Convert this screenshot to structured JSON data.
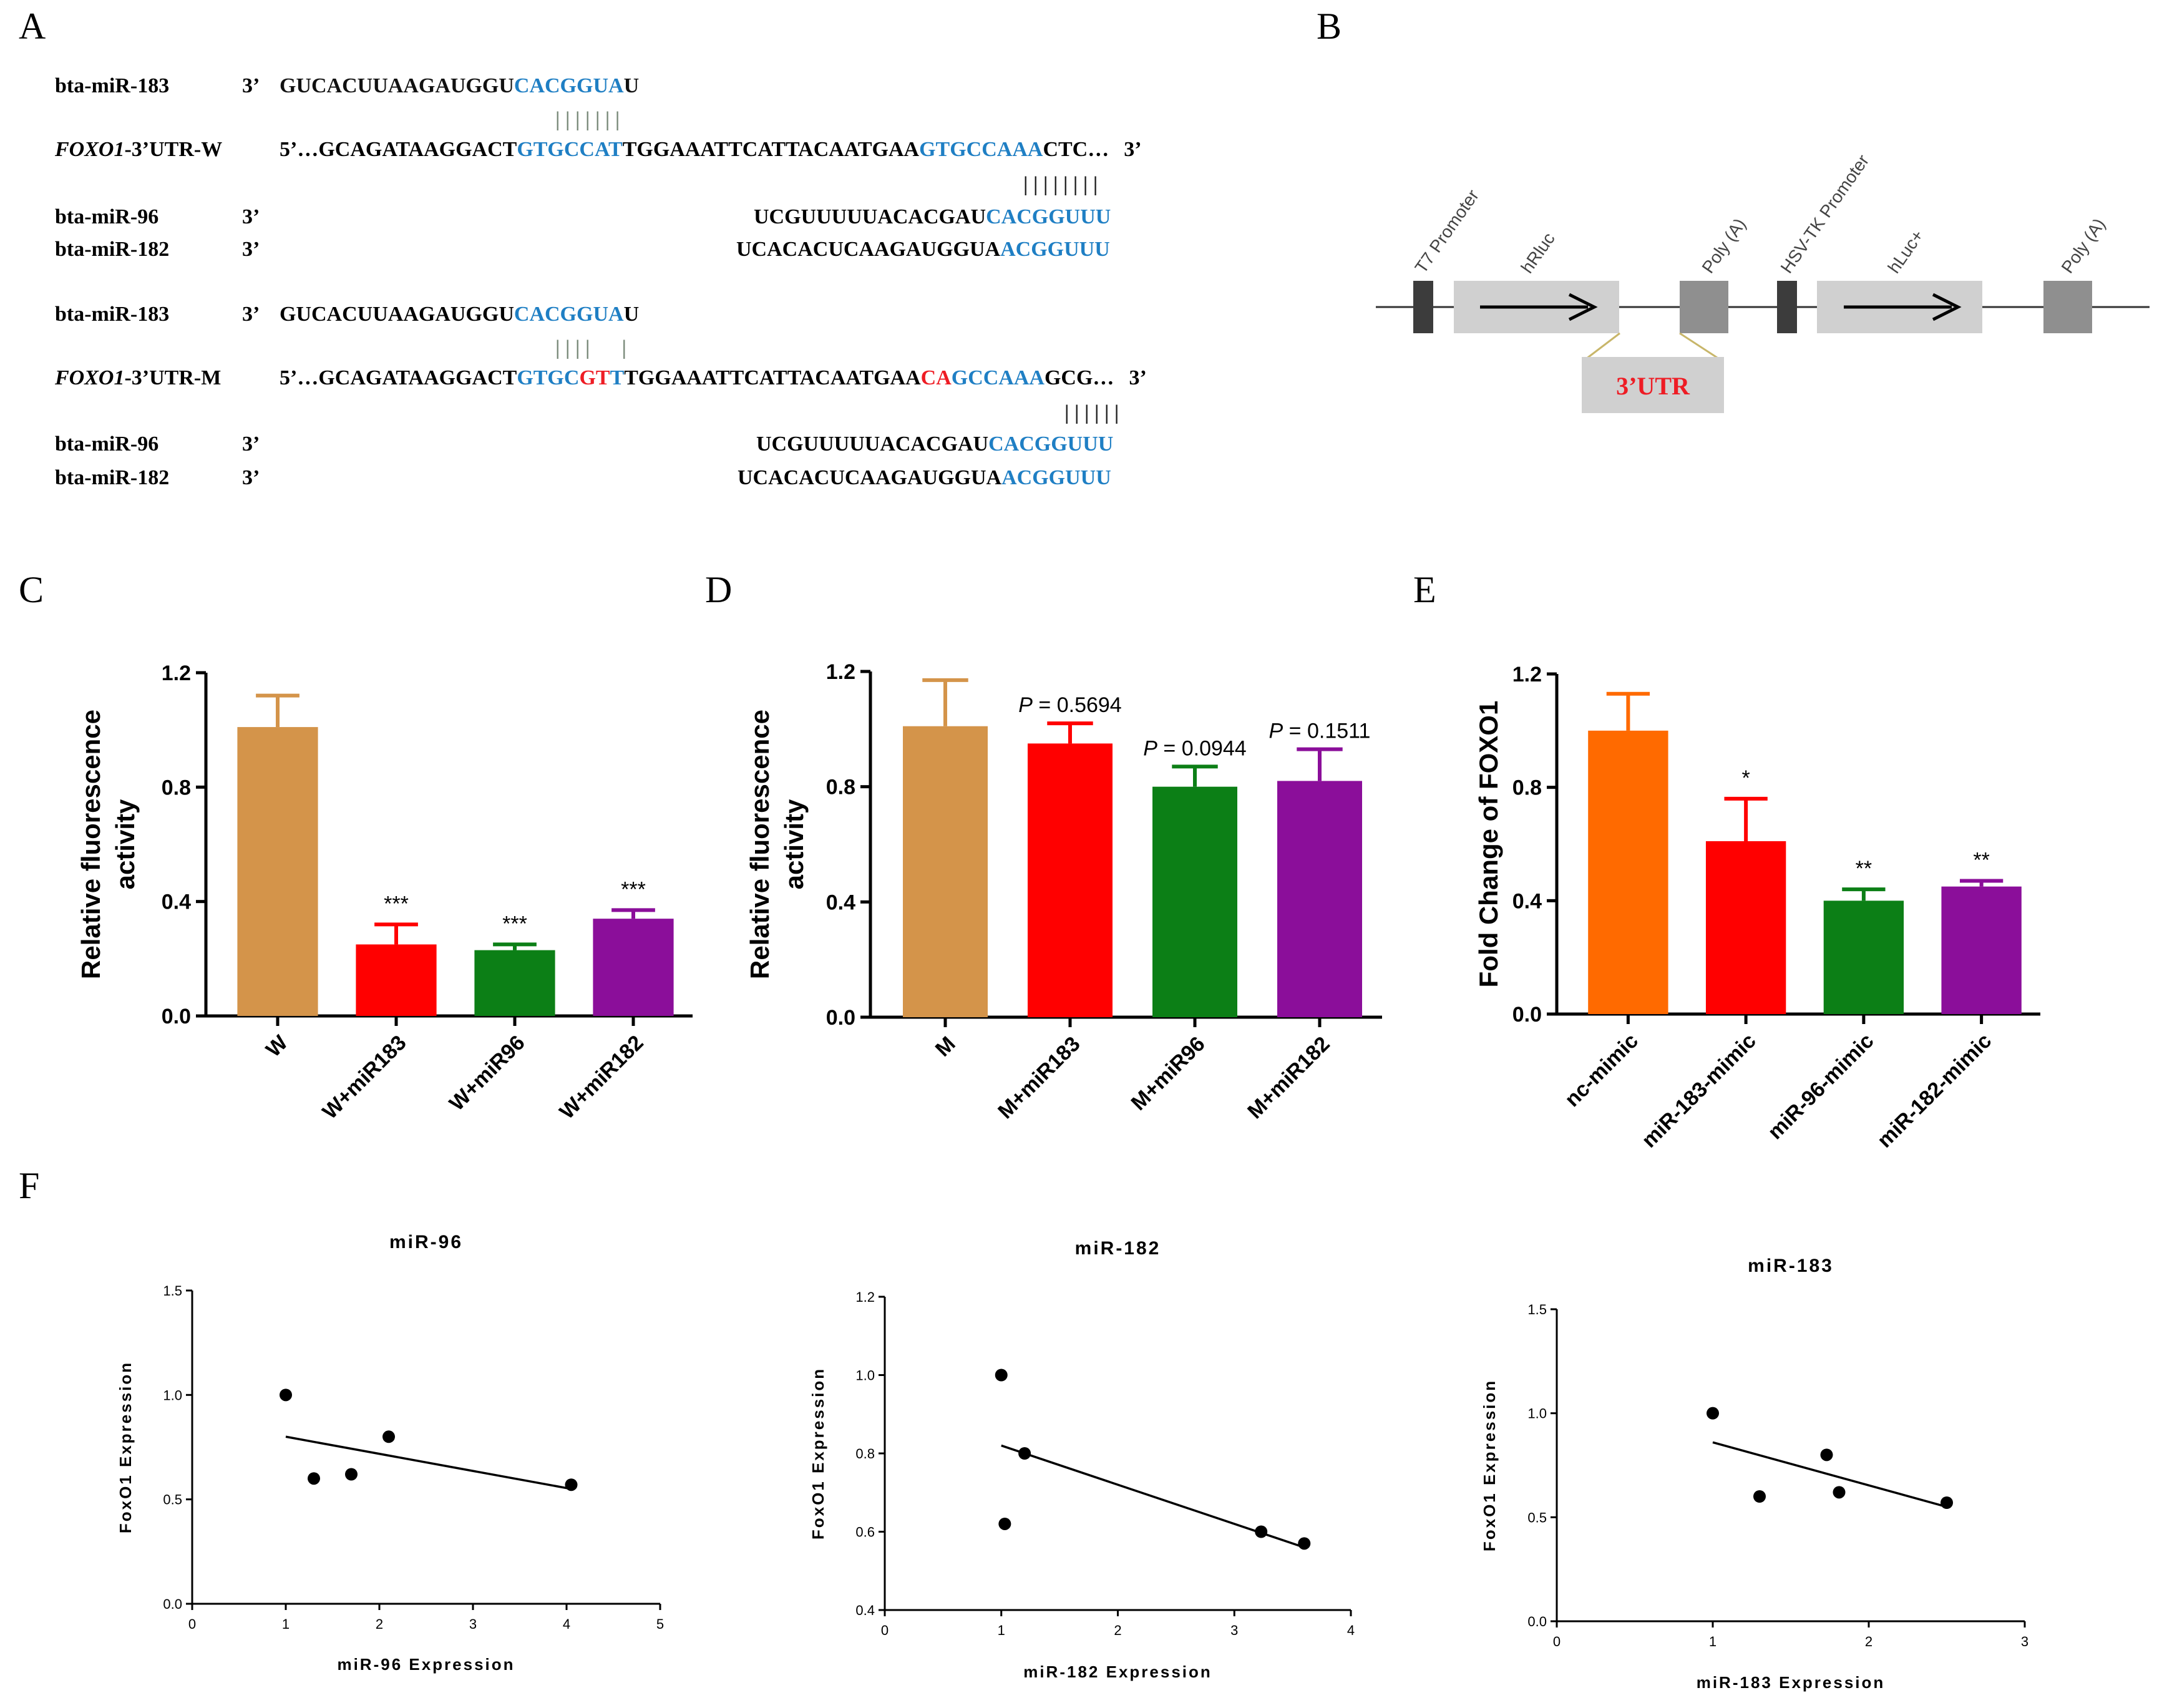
{
  "colors": {
    "blue": "#1f7fc4",
    "red": "#ee1c24",
    "black": "#111111",
    "W": "#d4944a",
    "M": "#d4944a",
    "miR183": "#ff0000",
    "miR96": "#0c7f16",
    "miR182": "#8b0e9a",
    "nc": "#ff6a00"
  },
  "panels": {
    "A": "A",
    "B": "B",
    "C": "C",
    "D": "D",
    "E": "E",
    "F": "F"
  },
  "panel_A": {
    "block1": {
      "l1_name": "bta-miR-183",
      "l1_dir": "3’",
      "l1_seq_black": "GUCACUUAAGAUGGU",
      "l1_seq_blue": "CACGGUA",
      "l1_seq_tail": "U",
      "pair1": "| | | | | | |",
      "l2_name_ital": "FOXO1",
      "l2_name_rest": "-3’UTR-W",
      "l2_dir": "5’…",
      "l2_s1": "GCAGATAAGGACT",
      "l2_s2": "GTGCCAT",
      "l2_s3": "TGGAAATTCATTACAATGAA",
      "l2_s4": "GTGCCAAA",
      "l2_s5": "CTC…",
      "l2_end": "3’",
      "pair2": "| | | | | | | |",
      "l3_name": "bta-miR-96",
      "l3_dir": "3’",
      "l3_seq_black": "UCGUUUUUACACGAU",
      "l3_seq_blue": "CACGGUUU",
      "l4_name": "bta-miR-182",
      "l4_dir": "3’",
      "l4_seq_black": "UCACACUCAAGAUGGUA",
      "l4_seq_blue": "ACGGUUU"
    },
    "block2": {
      "l1_name": "bta-miR-183",
      "l1_dir": "3’",
      "l1_seq_black": "GUCACUUAAGAUGGU",
      "l1_seq_blue": "CACGGUA",
      "l1_seq_tail": "U",
      "pair1": "| | | |      |",
      "l2_name_ital": "FOXO1",
      "l2_name_rest": "-3’UTR-M",
      "l2_dir": "5’…",
      "l2_s1": "GCAGATAAGGACT",
      "l2_s2": "GTGC",
      "l2_s3": "GT",
      "l2_s4": "T",
      "l2_s5": "TGGAAATTCATTACAATGAA",
      "l2_s6": "CA",
      "l2_s7": "GCCAAA",
      "l2_s8": "GCG…",
      "l2_end": "3’",
      "pair2": "| | | | | |",
      "l3_name": "bta-miR-96",
      "l3_dir": "3’",
      "l3_seq_black": "UCGUUUUUACACGAU",
      "l3_seq_blue": "CACGGUUU",
      "l4_name": "bta-miR-182",
      "l4_dir": "3’",
      "l4_seq_black": "UCACACUCAAGAUGGUA",
      "l4_seq_blue": "ACGGUUU"
    }
  },
  "panel_B": {
    "t7": "T7 Promoter",
    "hrluc": "hRluc",
    "polya1": "Poly (A)",
    "hsv": "HSV-TK Promoter",
    "hluc": "hLuc+",
    "polya2": "Poly (A)",
    "utr": "3’UTR"
  },
  "chart_data": [
    {
      "panel": "C",
      "type": "bar",
      "ylabel_line1": "Relative fluorescence",
      "ylabel_line2": "activity",
      "ylim": [
        0,
        1.2
      ],
      "yticks": [
        "0.0",
        "0.4",
        "0.8",
        "1.2"
      ],
      "categories": [
        "W",
        "W+miR183",
        "W+miR96",
        "W+miR182"
      ],
      "values": [
        1.01,
        0.25,
        0.23,
        0.34
      ],
      "errors": [
        0.11,
        0.07,
        0.02,
        0.03
      ],
      "annotations": [
        "",
        "***",
        "***",
        "***"
      ]
    },
    {
      "panel": "D",
      "type": "bar",
      "ylabel_line1": "Relative fluorescence",
      "ylabel_line2": "activity",
      "ylim": [
        0,
        1.2
      ],
      "yticks": [
        "0.0",
        "0.4",
        "0.8",
        "1.2"
      ],
      "categories": [
        "M",
        "M+miR183",
        "M+miR96",
        "M+miR182"
      ],
      "values": [
        1.01,
        0.95,
        0.8,
        0.82
      ],
      "errors": [
        0.16,
        0.07,
        0.07,
        0.11
      ],
      "annotations": [
        "",
        "P = 0.5694",
        "P = 0.0944",
        "P = 0.1511"
      ]
    },
    {
      "panel": "E",
      "type": "bar",
      "ylabel_line1": "Fold Change of FOXO1",
      "ylim": [
        0,
        1.2
      ],
      "yticks": [
        "0.0",
        "0.4",
        "0.8",
        "1.2"
      ],
      "categories": [
        "nc-mimic",
        "miR-183-mimic",
        "miR-96-mimic",
        "miR-182-mimic"
      ],
      "values": [
        1.0,
        0.61,
        0.4,
        0.45
      ],
      "errors": [
        0.13,
        0.15,
        0.04,
        0.02
      ],
      "annotations": [
        "",
        "*",
        "**",
        "**"
      ]
    },
    {
      "panel": "F1",
      "type": "scatter",
      "title": "miR-96",
      "xlabel": "miR-96 Expression",
      "ylabel": "FoxO1 Expression",
      "xlim": [
        0,
        5
      ],
      "ylim": [
        0.0,
        1.5
      ],
      "xticks": [
        "0",
        "1",
        "2",
        "3",
        "4",
        "5"
      ],
      "yticks": [
        "0.0",
        "0.5",
        "1.0",
        "1.5"
      ],
      "x": [
        1.0,
        1.3,
        1.7,
        2.1,
        4.05
      ],
      "y": [
        1.0,
        0.6,
        0.62,
        0.8,
        0.57
      ],
      "fit": {
        "x": [
          1.0,
          4.05
        ],
        "y": [
          0.8,
          0.55
        ]
      }
    },
    {
      "panel": "F2",
      "type": "scatter",
      "title": "miR-182",
      "xlabel": "miR-182 Expression",
      "ylabel": "FoxO1 Expression",
      "xlim": [
        0,
        4
      ],
      "ylim": [
        0.4,
        1.2
      ],
      "xticks": [
        "0",
        "1",
        "2",
        "3",
        "4"
      ],
      "yticks": [
        "0.4",
        "0.6",
        "0.8",
        "1.0",
        "1.2"
      ],
      "x": [
        1.0,
        1.03,
        1.2,
        3.23,
        3.6
      ],
      "y": [
        1.0,
        0.62,
        0.8,
        0.6,
        0.57
      ],
      "fit": {
        "x": [
          1.0,
          3.6
        ],
        "y": [
          0.82,
          0.56
        ]
      }
    },
    {
      "panel": "F3",
      "type": "scatter",
      "title": "miR-183",
      "xlabel": "miR-183 Expression",
      "ylabel": "FoxO1 Expression",
      "xlim": [
        0,
        3
      ],
      "ylim": [
        0.0,
        1.5
      ],
      "xticks": [
        "0",
        "1",
        "2",
        "3"
      ],
      "yticks": [
        "0.0",
        "0.5",
        "1.0",
        "1.5"
      ],
      "x": [
        1.0,
        1.3,
        1.73,
        1.81,
        2.5
      ],
      "y": [
        1.0,
        0.6,
        0.8,
        0.62,
        0.57
      ],
      "fit": {
        "x": [
          1.0,
          2.5
        ],
        "y": [
          0.86,
          0.55
        ]
      }
    }
  ]
}
